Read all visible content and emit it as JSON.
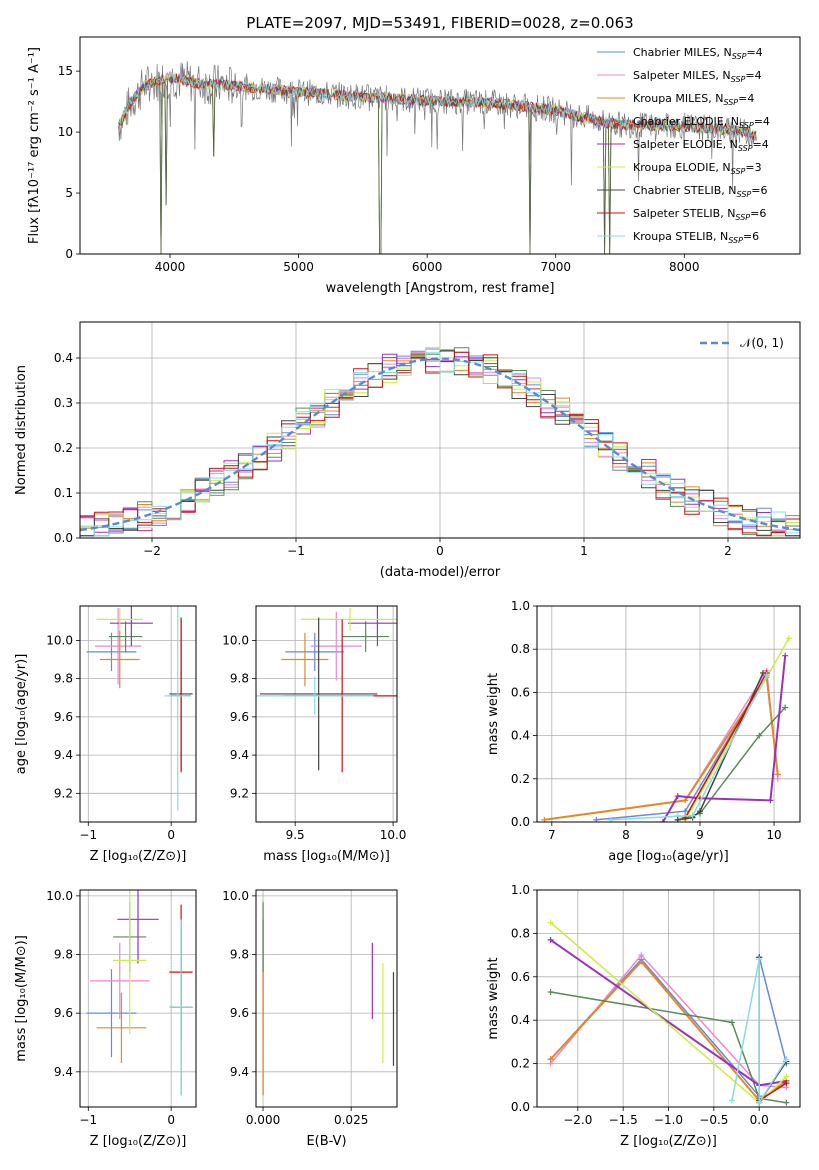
{
  "figure_title": "PLATE=2097, MJD=53491, FIBERID=0028, z=0.063",
  "model_colors": [
    "#6688dd",
    "#e88ad0",
    "#e08a2a",
    "#5a8a5a",
    "#9933bb",
    "#ccee44",
    "#444444",
    "#cc1111",
    "#88dde0"
  ],
  "chart_data": [
    {
      "id": "spectrum",
      "type": "line",
      "title": "PLATE=2097, MJD=53491, FIBERID=0028, z=0.063",
      "xlabel": "wavelength [Angstrom, rest frame]",
      "ylabel": "Flux [fλ10⁻¹⁷ erg cm⁻² s⁻¹ A⁻¹]",
      "xlim": [
        3300,
        8900
      ],
      "ylim": [
        0,
        17.8
      ],
      "xticks": [
        4000,
        5000,
        6000,
        7000,
        8000
      ],
      "xtick_labels": [
        "4000",
        "5000",
        "6000",
        "7000",
        "8000"
      ],
      "yticks": [
        0,
        5,
        10,
        15
      ],
      "ytick_labels": [
        "0",
        "5",
        "10",
        "15"
      ],
      "grid": false,
      "legend_position": "top-right",
      "legend": [
        {
          "label": "Chabrier MILES, N",
          "sub": "SSP",
          "suffix": "=4"
        },
        {
          "label": "Salpeter MILES, N",
          "sub": "SSP",
          "suffix": "=4"
        },
        {
          "label": "Kroupa MILES, N",
          "sub": "SSP",
          "suffix": "=4"
        },
        {
          "label": "Chabrier ELODIE, N",
          "sub": "SSP",
          "suffix": "=4"
        },
        {
          "label": "Salpeter ELODIE, N",
          "sub": "SSP",
          "suffix": "=4"
        },
        {
          "label": "Kroupa ELODIE, N",
          "sub": "SSP",
          "suffix": "=3"
        },
        {
          "label": "Chabrier STELIB, N",
          "sub": "SSP",
          "suffix": "=6"
        },
        {
          "label": "Salpeter STELIB, N",
          "sub": "SSP",
          "suffix": "=6"
        },
        {
          "label": "Kroupa STELIB, N",
          "sub": "SSP",
          "suffix": "=6"
        }
      ],
      "continuum": {
        "x": [
          3600,
          3700,
          3800,
          3900,
          4000,
          4200,
          4500,
          5000,
          5500,
          6000,
          6500,
          7000,
          7300,
          7500,
          8000,
          8500,
          8600
        ],
        "y": [
          10.5,
          12.5,
          13.8,
          14.2,
          14.5,
          14.0,
          13.8,
          13.3,
          12.9,
          12.6,
          12.4,
          11.8,
          11.0,
          10.6,
          10.5,
          10.0,
          9.5
        ]
      },
      "absorption_features": [
        {
          "x": 3934,
          "depth_to": 0
        },
        {
          "x": 3969,
          "depth_to": 4
        },
        {
          "x": 4340,
          "depth_to": 8
        },
        {
          "x": 5635,
          "depth_to": 0
        },
        {
          "x": 6800,
          "depth_to": 0
        },
        {
          "x": 7380,
          "depth_to": 0
        },
        {
          "x": 7420,
          "depth_to": 0
        }
      ]
    },
    {
      "id": "residuals",
      "type": "histogram",
      "xlabel": "(data-model)/error",
      "ylabel": "Normed distribution",
      "xlim": [
        -2.5,
        2.5
      ],
      "ylim": [
        0,
        0.48
      ],
      "xticks": [
        -2,
        -1,
        0,
        1,
        2
      ],
      "xtick_labels": [
        "−2",
        "−1",
        "0",
        "1",
        "2"
      ],
      "yticks": [
        0,
        0.1,
        0.2,
        0.3,
        0.4
      ],
      "ytick_labels": [
        "0.0",
        "0.1",
        "0.2",
        "0.3",
        "0.4"
      ],
      "grid": true,
      "legend_position": "top-right",
      "reference_label": "𝒩(0, 1)",
      "bin_width": 0.1,
      "bins_start": -2.5,
      "reference_curve": {
        "type": "normal",
        "mean": 0,
        "sigma": 1
      }
    },
    {
      "id": "age_vs_Z",
      "type": "errorbar",
      "xlabel": "Z [log₁₀(Z/Z⊙)]",
      "ylabel": "age  [log₁₀(age/yr)]",
      "xlim": [
        -1.1,
        0.3
      ],
      "ylim": [
        9.05,
        10.18
      ],
      "xticks": [
        -1,
        0
      ],
      "xtick_labels": [
        "−1",
        "0"
      ],
      "yticks": [
        9.2,
        9.4,
        9.6,
        9.8,
        10.0
      ],
      "ytick_labels": [
        "9.2",
        "9.4",
        "9.6",
        "9.8",
        "10.0"
      ],
      "grid": true,
      "points": [
        {
          "x": -0.72,
          "xerr": 0.3,
          "y": 9.94,
          "yerr": 0.1
        },
        {
          "x": -0.64,
          "xerr": 0.28,
          "y": 9.97,
          "yerr": 0.2
        },
        {
          "x": -0.62,
          "xerr": 0.24,
          "y": 9.9,
          "yerr": 0.15
        },
        {
          "x": -0.55,
          "xerr": 0.2,
          "y": 10.02,
          "yerr": 0.08
        },
        {
          "x": -0.48,
          "xerr": 0.26,
          "y": 10.09,
          "yerr": 0.12
        },
        {
          "x": -0.62,
          "xerr": 0.28,
          "y": 10.11,
          "yerr": 0.06
        },
        {
          "x": 0.12,
          "xerr": 0.14,
          "y": 9.72,
          "yerr": 0.4
        },
        {
          "x": 0.12,
          "xerr": 0.12,
          "y": 9.71,
          "yerr": 0.4
        },
        {
          "x": 0.08,
          "xerr": 0.16,
          "y": 9.71,
          "yerr": 0.6
        }
      ]
    },
    {
      "id": "age_vs_mass",
      "type": "errorbar",
      "xlabel": "mass [log₁₀(M/M⊙)]",
      "ylabel": "",
      "xlim": [
        9.3,
        10.02
      ],
      "ylim": [
        9.05,
        10.18
      ],
      "xticks": [
        9.5,
        10.0
      ],
      "xtick_labels": [
        "9.5",
        "10.0"
      ],
      "yticks": [
        9.2,
        9.4,
        9.6,
        9.8,
        10.0
      ],
      "ytick_labels": [
        "9.2",
        "9.4",
        "9.6",
        "9.8",
        "10.0"
      ],
      "grid": true,
      "points": [
        {
          "x": 9.6,
          "xerr": 0.15,
          "y": 9.94,
          "yerr": 0.1
        },
        {
          "x": 9.71,
          "xerr": 0.13,
          "y": 9.97,
          "yerr": 0.18
        },
        {
          "x": 9.55,
          "xerr": 0.12,
          "y": 9.9,
          "yerr": 0.14
        },
        {
          "x": 9.86,
          "xerr": 0.12,
          "y": 10.02,
          "yerr": 0.08
        },
        {
          "x": 9.92,
          "xerr": 0.15,
          "y": 10.09,
          "yerr": 0.12
        },
        {
          "x": 9.78,
          "xerr": 0.25,
          "y": 10.11,
          "yerr": 0.06
        },
        {
          "x": 9.62,
          "xerr": 0.3,
          "y": 9.72,
          "yerr": 0.4
        },
        {
          "x": 9.74,
          "xerr": 0.3,
          "y": 9.71,
          "yerr": 0.4
        },
        {
          "x": 9.6,
          "xerr": 0.3,
          "y": 9.71,
          "yerr": 0.1
        }
      ]
    },
    {
      "id": "mass_weight_vs_age",
      "type": "line",
      "xlabel": "age  [log₁₀(age/yr)]",
      "ylabel": "mass weight",
      "xlim": [
        6.8,
        10.35
      ],
      "ylim": [
        0,
        1.0
      ],
      "xticks": [
        7,
        8,
        9,
        10
      ],
      "xtick_labels": [
        "7",
        "8",
        "9",
        "10"
      ],
      "yticks": [
        0,
        0.2,
        0.4,
        0.6,
        0.8,
        1.0
      ],
      "ytick_labels": [
        "0.0",
        "0.2",
        "0.4",
        "0.6",
        "0.8",
        "1.0"
      ],
      "grid": true,
      "series": [
        {
          "x": [
            7.6,
            8.8,
            9.9,
            10.05
          ],
          "y": [
            0.01,
            0.05,
            0.68,
            0.22
          ]
        },
        {
          "x": [
            8.8,
            9.9,
            10.05
          ],
          "y": [
            0.1,
            0.7,
            0.2
          ]
        },
        {
          "x": [
            6.9,
            8.8,
            9.9,
            10.05
          ],
          "y": [
            0.01,
            0.1,
            0.67,
            0.22
          ]
        },
        {
          "x": [
            8.7,
            9.0,
            9.8,
            10.15
          ],
          "y": [
            0.01,
            0.04,
            0.4,
            0.53
          ]
        },
        {
          "x": [
            8.5,
            8.7,
            9.0,
            9.95,
            10.15
          ],
          "y": [
            0.0,
            0.12,
            0.11,
            0.1,
            0.77
          ]
        },
        {
          "x": [
            8.7,
            8.8,
            10.2
          ],
          "y": [
            0.03,
            0.01,
            0.85
          ]
        },
        {
          "x": [
            8.7,
            8.9,
            9.0,
            9.85
          ],
          "y": [
            0.01,
            0.02,
            0.05,
            0.69
          ]
        },
        {
          "x": [
            8.8,
            9.9
          ],
          "y": [
            0.02,
            0.69
          ]
        },
        {
          "x": [
            7.8,
            8.9,
            9.9
          ],
          "y": [
            0.01,
            0.03,
            0.68
          ]
        }
      ]
    },
    {
      "id": "mass_vs_Z",
      "type": "errorbar",
      "xlabel": "Z [log₁₀(Z/Z⊙)]",
      "ylabel": "mass [log₁₀(M/M⊙)]",
      "xlim": [
        -1.1,
        0.3
      ],
      "ylim": [
        9.28,
        10.02
      ],
      "xticks": [
        -1,
        0
      ],
      "xtick_labels": [
        "−1",
        "0"
      ],
      "yticks": [
        9.4,
        9.6,
        9.8,
        10.0
      ],
      "ytick_labels": [
        "9.4",
        "9.6",
        "9.8",
        "10.0"
      ],
      "grid": true,
      "points": [
        {
          "x": -0.72,
          "xerr": 0.3,
          "y": 9.6,
          "yerr": 0.15
        },
        {
          "x": -0.62,
          "xerr": 0.36,
          "y": 9.71,
          "yerr": 0.13
        },
        {
          "x": -0.6,
          "xerr": 0.3,
          "y": 9.55,
          "yerr": 0.12
        },
        {
          "x": -0.5,
          "xerr": 0.2,
          "y": 9.86,
          "yerr": 0.12
        },
        {
          "x": -0.4,
          "xerr": 0.25,
          "y": 9.92,
          "yerr": 0.15
        },
        {
          "x": -0.5,
          "xerr": 0.2,
          "y": 9.78,
          "yerr": 0.25
        },
        {
          "x": 0.12,
          "xerr": 0.14,
          "y": 9.62,
          "yerr": 0.3
        },
        {
          "x": 0.12,
          "xerr": 0.14,
          "y": 9.74,
          "yerr": 0.23
        },
        {
          "x": 0.12,
          "xerr": 0.14,
          "y": 9.62,
          "yerr": 0.3
        }
      ]
    },
    {
      "id": "mass_vs_ebv",
      "type": "errorbar",
      "xlabel": "E(B-V)",
      "ylabel": "",
      "xlim": [
        -0.002,
        0.038
      ],
      "ylim": [
        9.28,
        10.02
      ],
      "xticks": [
        0,
        0.025
      ],
      "xtick_labels": [
        "0.000",
        "0.025"
      ],
      "yticks": [
        9.4,
        9.6,
        9.8,
        10.0
      ],
      "ytick_labels": [
        "9.4",
        "9.6",
        "9.8",
        "10.0"
      ],
      "grid": true,
      "points": [
        {
          "x": 0.0,
          "xerr": 0,
          "y": 9.62,
          "yerr": 0.3
        },
        {
          "x": 0.0,
          "xerr": 0,
          "y": 9.74,
          "yerr": 0.23
        },
        {
          "x": 0.0,
          "xerr": 0,
          "y": 9.62,
          "yerr": 0.3
        },
        {
          "x": 0.0,
          "xerr": 0,
          "y": 9.86,
          "yerr": 0.12
        },
        {
          "x": 0.031,
          "xerr": 0,
          "y": 9.71,
          "yerr": 0.13
        },
        {
          "x": 0.034,
          "xerr": 0,
          "y": 9.6,
          "yerr": 0.17
        },
        {
          "x": 0.037,
          "xerr": 0,
          "y": 9.58,
          "yerr": 0.16
        }
      ]
    },
    {
      "id": "mass_weight_vs_Z",
      "type": "line",
      "xlabel": "Z [log₁₀(Z/Z⊙)]",
      "ylabel": "mass weight",
      "xlim": [
        -2.45,
        0.45
      ],
      "ylim": [
        0,
        1.0
      ],
      "xticks": [
        -2.0,
        -1.5,
        -1.0,
        -0.5,
        0.0
      ],
      "xtick_labels": [
        "−2.0",
        "−1.5",
        "−1.0",
        "−0.5",
        "0.0"
      ],
      "yticks": [
        0,
        0.2,
        0.4,
        0.6,
        0.8,
        1.0
      ],
      "ytick_labels": [
        "0.0",
        "0.2",
        "0.4",
        "0.6",
        "0.8",
        "1.0"
      ],
      "grid": true,
      "series": [
        {
          "x": [
            -2.3,
            -1.3,
            0.0,
            0.0,
            0.3
          ],
          "y": [
            0.22,
            0.68,
            0.05,
            0.69,
            0.2
          ]
        },
        {
          "x": [
            -2.3,
            -1.3,
            0.0,
            0.3
          ],
          "y": [
            0.2,
            0.7,
            0.1,
            0.09
          ]
        },
        {
          "x": [
            -2.3,
            -1.3,
            0.0,
            0.3
          ],
          "y": [
            0.22,
            0.67,
            0.03,
            0.12
          ]
        },
        {
          "x": [
            -2.3,
            -0.3,
            0.0,
            0.3
          ],
          "y": [
            0.53,
            0.39,
            0.04,
            0.02
          ]
        },
        {
          "x": [
            -2.3,
            0.0,
            0.3
          ],
          "y": [
            0.77,
            0.1,
            0.12
          ]
        },
        {
          "x": [
            -2.3,
            0.0,
            0.3
          ],
          "y": [
            0.85,
            0.02,
            0.14
          ]
        },
        {
          "x": [
            0.0,
            0.0,
            0.3
          ],
          "y": [
            0.69,
            0.02,
            0.21
          ]
        },
        {
          "x": [
            0.0,
            0.3
          ],
          "y": [
            0.03,
            0.11
          ]
        },
        {
          "x": [
            -0.3,
            0.0,
            0.0,
            0.3
          ],
          "y": [
            0.03,
            0.68,
            0.02,
            0.22
          ]
        }
      ]
    }
  ]
}
